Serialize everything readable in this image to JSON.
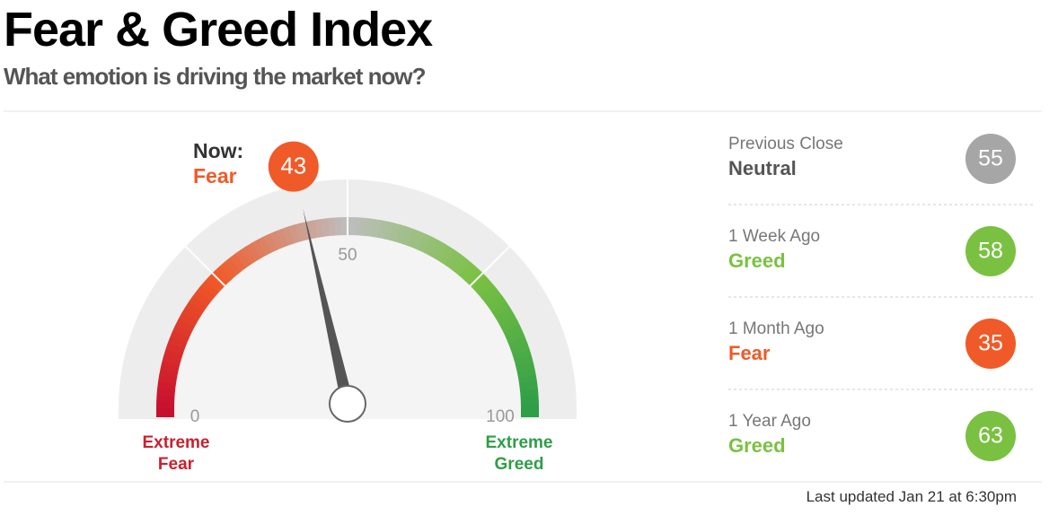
{
  "chart_data": {
    "type": "gauge",
    "title": "Fear & Greed Index",
    "subtitle": "What emotion is driving the market now?",
    "now_label": "Now:",
    "rating": "Fear",
    "value": 43,
    "color": "#f05a28",
    "ylim": [
      0,
      100
    ],
    "yticks": [
      0,
      50,
      100
    ],
    "low_label": "Extreme Fear",
    "high_label": "Extreme Greed",
    "history": [
      {
        "label": "Previous Close",
        "rating": "Neutral",
        "value": 55,
        "color": "#a6a6a6"
      },
      {
        "label": "1 Week Ago",
        "rating": "Greed",
        "value": 58,
        "color": "#7ac142"
      },
      {
        "label": "1 Month Ago",
        "rating": "Fear",
        "value": 35,
        "color": "#f05a28"
      },
      {
        "label": "1 Year Ago",
        "rating": "Greed",
        "value": 63,
        "color": "#7ac142"
      }
    ],
    "footer": "Last updated Jan 21 at 6:30pm"
  }
}
